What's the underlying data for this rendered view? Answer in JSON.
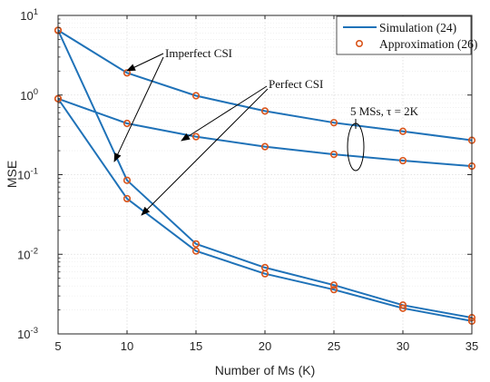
{
  "chart_data": {
    "type": "line",
    "xlabel": "Number of Ms (K)",
    "ylabel": "MSE",
    "x_scale": "linear",
    "y_scale": "log",
    "xlim": [
      5,
      35
    ],
    "ylim": [
      0.001,
      10
    ],
    "x_ticks": [
      5,
      10,
      15,
      20,
      25,
      30,
      35
    ],
    "y_ticks": [
      {
        "value": 10,
        "base": "10",
        "exp": "1"
      },
      {
        "value": 1,
        "base": "10",
        "exp": "0"
      },
      {
        "value": 0.1,
        "base": "10",
        "exp": "-1"
      },
      {
        "value": 0.01,
        "base": "10",
        "exp": "-2"
      },
      {
        "value": 0.001,
        "base": "10",
        "exp": "-3"
      }
    ],
    "grid": true,
    "legend_position": "top-right",
    "legend": [
      {
        "label": "Simulation (24)",
        "style": "line",
        "color": "#1f72b8"
      },
      {
        "label": "Approximation (26)",
        "style": "circle-marker",
        "color": "#d9541a"
      }
    ],
    "series": [
      {
        "group": "Imperfect CSI",
        "x": [
          5,
          10,
          15,
          20,
          25,
          30,
          35
        ],
        "values": [
          6.5,
          1.9,
          0.98,
          0.63,
          0.45,
          0.35,
          0.27
        ]
      },
      {
        "group": "Perfect CSI",
        "x": [
          5,
          10,
          15,
          20,
          25,
          30,
          35
        ],
        "values": [
          0.9,
          0.44,
          0.3,
          0.225,
          0.18,
          0.15,
          0.128
        ]
      },
      {
        "group": "Imperfect CSI",
        "x": [
          5,
          10,
          15,
          20,
          25,
          30,
          35
        ],
        "values": [
          6.5,
          0.085,
          0.0135,
          0.0068,
          0.0041,
          0.0023,
          0.0016
        ]
      },
      {
        "group": "Perfect CSI",
        "x": [
          5,
          10,
          15,
          20,
          25,
          30,
          35
        ],
        "values": [
          0.9,
          0.05,
          0.011,
          0.0057,
          0.0036,
          0.0021,
          0.00145
        ]
      }
    ],
    "annotations": {
      "imperfect": "Imperfect CSI",
      "perfect": "Perfect CSI",
      "config": "5 MSs, τ = 2K"
    },
    "colors": {
      "line": "#1f72b8",
      "marker": "#d9541a",
      "grid": "#dcdcdc",
      "axis": "#262626"
    }
  }
}
